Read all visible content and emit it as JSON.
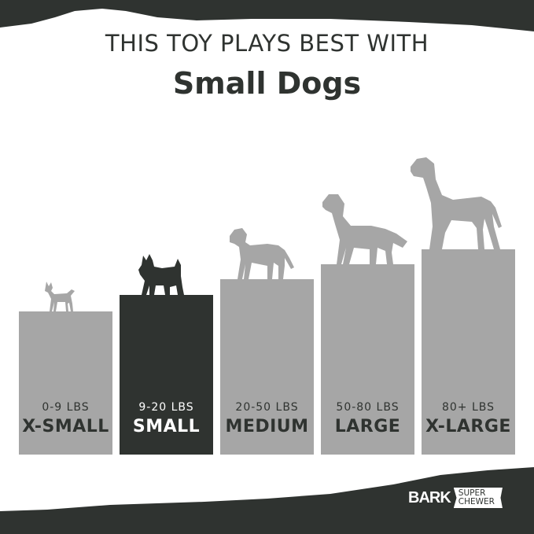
{
  "headline": {
    "line1": "THIS TOY PLAYS BEST WITH",
    "line2": "Small Dogs"
  },
  "sizes": [
    {
      "weight": "0-9 LBS",
      "label": "X-SMALL",
      "dog": "chihuahua-icon",
      "active": false
    },
    {
      "weight": "9-20 LBS",
      "label": "SMALL",
      "dog": "scottish-terrier-icon",
      "active": true
    },
    {
      "weight": "20-50 LBS",
      "label": "MEDIUM",
      "dog": "labrador-puppy-icon",
      "active": false
    },
    {
      "weight": "50-80 LBS",
      "label": "LARGE",
      "dog": "golden-retriever-icon",
      "active": false
    },
    {
      "weight": "80+ LBS",
      "label": "X-LARGE",
      "dog": "great-dane-icon",
      "active": false
    }
  ],
  "brand": {
    "name": "BARK",
    "tag_line1": "SUPER",
    "tag_line2": "CHEWER"
  },
  "colors": {
    "dark": "#2f3330",
    "gray": "#a6a6a6",
    "background": "#ffffff"
  }
}
